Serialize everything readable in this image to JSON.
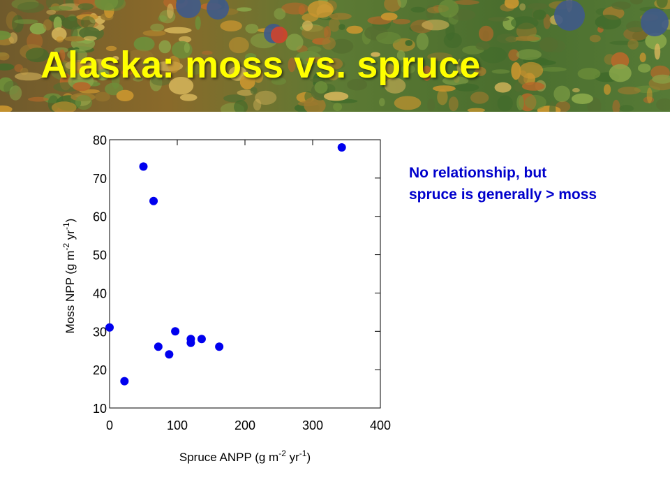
{
  "slide": {
    "title": "Alaska: moss vs. spruce",
    "title_color": "#ffff00",
    "banner_description_colors": [
      "#6b5a2e",
      "#c98a2c",
      "#4f7a2f",
      "#2e3f5a"
    ]
  },
  "annotation": {
    "lines": [
      "No relationship, but",
      "spruce is generally > moss"
    ],
    "color": "#0000cc"
  },
  "chart_data": {
    "type": "scatter",
    "title": "",
    "xlabel": {
      "main": "Spruce ANPP (g m",
      "sup1": "-2",
      "mid": " yr",
      "sup2": "-1",
      "end": ")"
    },
    "ylabel": {
      "main": "Moss NPP (g m",
      "sup1": "-2",
      "mid": " yr",
      "sup2": "-1",
      "end": ")"
    },
    "xlim": [
      0,
      400
    ],
    "ylim": [
      10,
      80
    ],
    "xticks": [
      "0",
      "100",
      "200",
      "300",
      "400"
    ],
    "yticks": [
      "10",
      "20",
      "30",
      "40",
      "50",
      "60",
      "70",
      "80"
    ],
    "grid": false,
    "marker_color": "#0000ee",
    "series": [
      {
        "x": [
          0,
          22,
          50,
          65,
          72,
          88,
          97,
          120,
          120,
          136,
          162,
          343
        ],
        "y": [
          31,
          17,
          73,
          64,
          26,
          24,
          30,
          28,
          27,
          28,
          26,
          78
        ]
      }
    ]
  }
}
